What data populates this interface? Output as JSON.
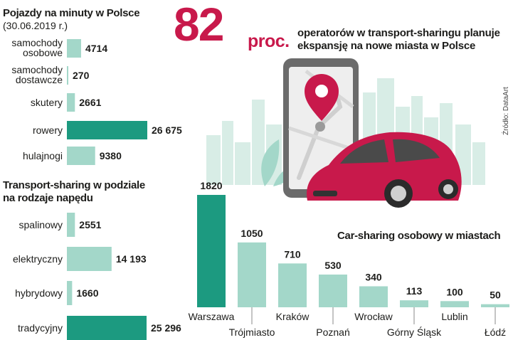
{
  "colors": {
    "teal_dark": "#1c9a80",
    "teal_light": "#a3d7c9",
    "accent_red": "#c8194b",
    "sky_green": "#d8ede6",
    "text": "#1d1d1b"
  },
  "headline": {
    "number": "82",
    "unit": "proc.",
    "text_line1": "operatorów w transport-sharingu planuje",
    "text_line2": "ekspansję na nowe miasta w Polsce"
  },
  "source": "Źródło: DataArt",
  "illustration": {
    "icons": [
      "phone-icon",
      "map-pin-icon",
      "car-icon",
      "city-skyline-icon",
      "leaf-plant-icon"
    ]
  },
  "chart_data": [
    {
      "type": "bar",
      "orientation": "horizontal",
      "title": "Pojazdy na minuty w Polsce",
      "subtitle": "(30.06.2019 r.)",
      "categories": [
        "samochody osobowe",
        "samochody dostawcze",
        "skutery",
        "rowery",
        "hulajnogi"
      ],
      "category_lines": [
        [
          "samochody",
          "osobowe"
        ],
        [
          "samochody",
          "dostawcze"
        ],
        [
          "skutery"
        ],
        [
          "rowery"
        ],
        [
          "hulajnogi"
        ]
      ],
      "values": [
        4714,
        270,
        2661,
        26675,
        9380
      ],
      "value_labels": [
        "4714",
        "270",
        "2661",
        "26 675",
        "9380"
      ],
      "highlight_index": 3,
      "xlim": [
        0,
        26675
      ]
    },
    {
      "type": "bar",
      "orientation": "horizontal",
      "title": "Transport-sharing w podziale na rodzaje napędu",
      "title_lines": [
        "Transport-sharing w podziale",
        "na rodzaje napędu"
      ],
      "categories": [
        "spalinowy",
        "elektryczny",
        "hybrydowy",
        "tradycyjny"
      ],
      "values": [
        2551,
        14193,
        1660,
        25296
      ],
      "value_labels": [
        "2551",
        "14 193",
        "1660",
        "25 296"
      ],
      "highlight_index": 3,
      "xlim": [
        0,
        25296
      ]
    },
    {
      "type": "bar",
      "orientation": "vertical",
      "title": "Car-sharing osobowy w miastach",
      "categories": [
        "Warszawa",
        "Trójmiasto",
        "Kraków",
        "Poznań",
        "Wrocław",
        "Górny Śląsk",
        "Lublin",
        "Łódź"
      ],
      "values": [
        1820,
        1050,
        710,
        530,
        340,
        113,
        100,
        50
      ],
      "value_labels": [
        "1820",
        "1050",
        "710",
        "530",
        "340",
        "113",
        "100",
        "50"
      ],
      "highlight_index": 0,
      "ylim": [
        0,
        1820
      ]
    }
  ]
}
